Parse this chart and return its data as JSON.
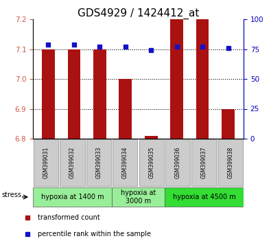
{
  "title": "GDS4929 / 1424412_at",
  "samples": [
    "GSM399031",
    "GSM399032",
    "GSM399033",
    "GSM399034",
    "GSM399035",
    "GSM399036",
    "GSM399037",
    "GSM399038"
  ],
  "transformed_count": [
    7.1,
    7.1,
    7.1,
    7.0,
    6.81,
    7.2,
    7.2,
    6.9
  ],
  "percentile_rank": [
    79,
    79,
    77,
    77,
    74,
    77,
    77,
    76
  ],
  "ylim_left": [
    6.8,
    7.2
  ],
  "ylim_right": [
    0,
    100
  ],
  "yticks_left": [
    6.8,
    6.9,
    7.0,
    7.1,
    7.2
  ],
  "yticks_right": [
    0,
    25,
    50,
    75,
    100
  ],
  "bar_color": "#aa1111",
  "dot_color": "#1111cc",
  "bar_bottom": 6.8,
  "bar_width": 0.5,
  "group_defs": [
    {
      "start": 0,
      "end": 2,
      "label": "hypoxia at 1400 m",
      "color": "#99ee99"
    },
    {
      "start": 3,
      "end": 4,
      "label": "hypoxia at\n3000 m",
      "color": "#99ee99"
    },
    {
      "start": 5,
      "end": 7,
      "label": "hypoxia at 4500 m",
      "color": "#33dd33"
    }
  ],
  "stress_label": "stress",
  "legend_items": [
    {
      "label": "transformed count",
      "color": "#aa1111"
    },
    {
      "label": "percentile rank within the sample",
      "color": "#1111cc"
    }
  ],
  "sample_box_color": "#cccccc",
  "title_fontsize": 11,
  "tick_fontsize": 7.5,
  "sample_fontsize": 5.5,
  "group_fontsize": 7,
  "legend_fontsize": 7,
  "stress_fontsize": 7
}
